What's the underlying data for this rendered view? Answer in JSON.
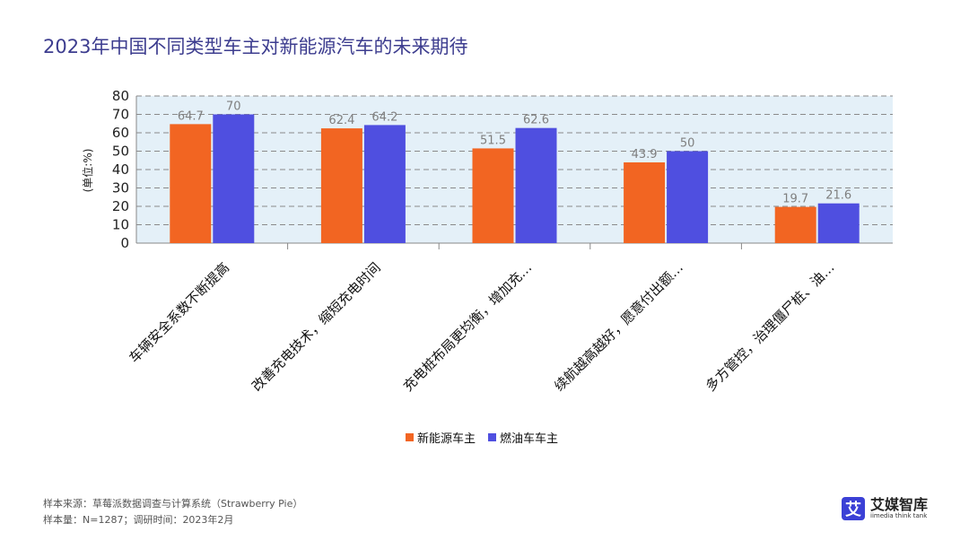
{
  "title": "2023年中国不同类型车主对新能源汽车的未来期待",
  "chart_data": {
    "type": "bar",
    "title": "2023年中国不同类型车主对新能源汽车的未来期待",
    "ylabel": "(单位:%)",
    "xlabel": "",
    "ylim": [
      0,
      80
    ],
    "yticks": [
      0,
      10,
      20,
      30,
      40,
      50,
      60,
      70,
      80
    ],
    "grid": true,
    "categories": [
      "车辆安全系数不断提高",
      "改善充电技术，缩短充电时间",
      "充电桩布局更均衡，增加充…",
      "续航越高越好，愿意付出额…",
      "多方管控，治理僵尸桩、油…"
    ],
    "series": [
      {
        "name": "新能源车主",
        "color": "#f26522",
        "values": [
          64.7,
          62.4,
          51.5,
          43.9,
          19.7
        ]
      },
      {
        "name": "燃油车车主",
        "color": "#4f4fe0",
        "values": [
          70,
          64.2,
          62.6,
          50,
          21.6
        ]
      }
    ],
    "legend_position": "bottom"
  },
  "legend": {
    "items": [
      {
        "label": "新能源车主",
        "color": "#f26522"
      },
      {
        "label": "燃油车车主",
        "color": "#4f4fe0"
      }
    ]
  },
  "footer": {
    "source": "样本来源：草莓派数据调查与计算系统（Strawberry Pie）",
    "sample": "样本量：N=1287；调研时间：2023年2月"
  },
  "brand": {
    "logo_char": "艾",
    "name": "艾媒智库",
    "sub": "iimedia think tank"
  }
}
